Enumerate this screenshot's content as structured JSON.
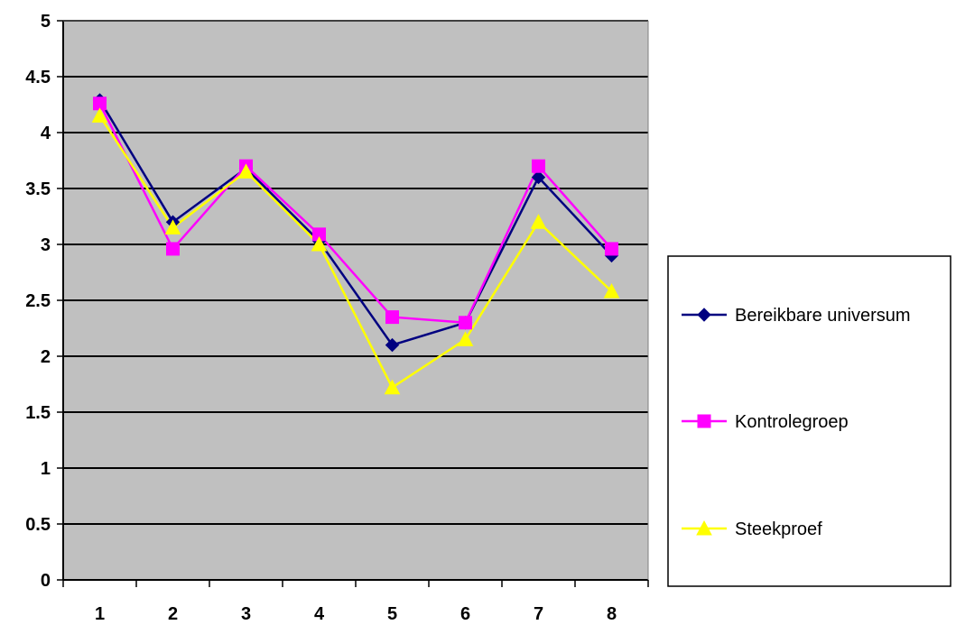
{
  "chart_data": {
    "type": "line",
    "title": "",
    "xlabel": "",
    "ylabel": "",
    "categories": [
      "1",
      "2",
      "3",
      "4",
      "5",
      "6",
      "7",
      "8"
    ],
    "y_ticks": [
      "0",
      "0.5",
      "1",
      "1.5",
      "2",
      "2.5",
      "3",
      "3.5",
      "4",
      "4.5",
      "5"
    ],
    "ylim": [
      0,
      5
    ],
    "grid": "horizontal",
    "plot_background": "#c0c0c0",
    "legend_position": "right",
    "series": [
      {
        "name": "Bereikbare universum",
        "color": "#000080",
        "marker": "diamond",
        "values": [
          4.29,
          3.2,
          3.68,
          3.03,
          2.1,
          2.3,
          3.6,
          2.9
        ]
      },
      {
        "name": "Kontrolegroep",
        "color": "#ff00ff",
        "marker": "square",
        "values": [
          4.26,
          2.96,
          3.7,
          3.09,
          2.35,
          2.3,
          3.7,
          2.96
        ]
      },
      {
        "name": "Steekproef",
        "color": "#ffff00",
        "marker": "triangle",
        "values": [
          4.15,
          3.15,
          3.65,
          3.0,
          1.72,
          2.15,
          3.2,
          2.58
        ]
      }
    ]
  }
}
